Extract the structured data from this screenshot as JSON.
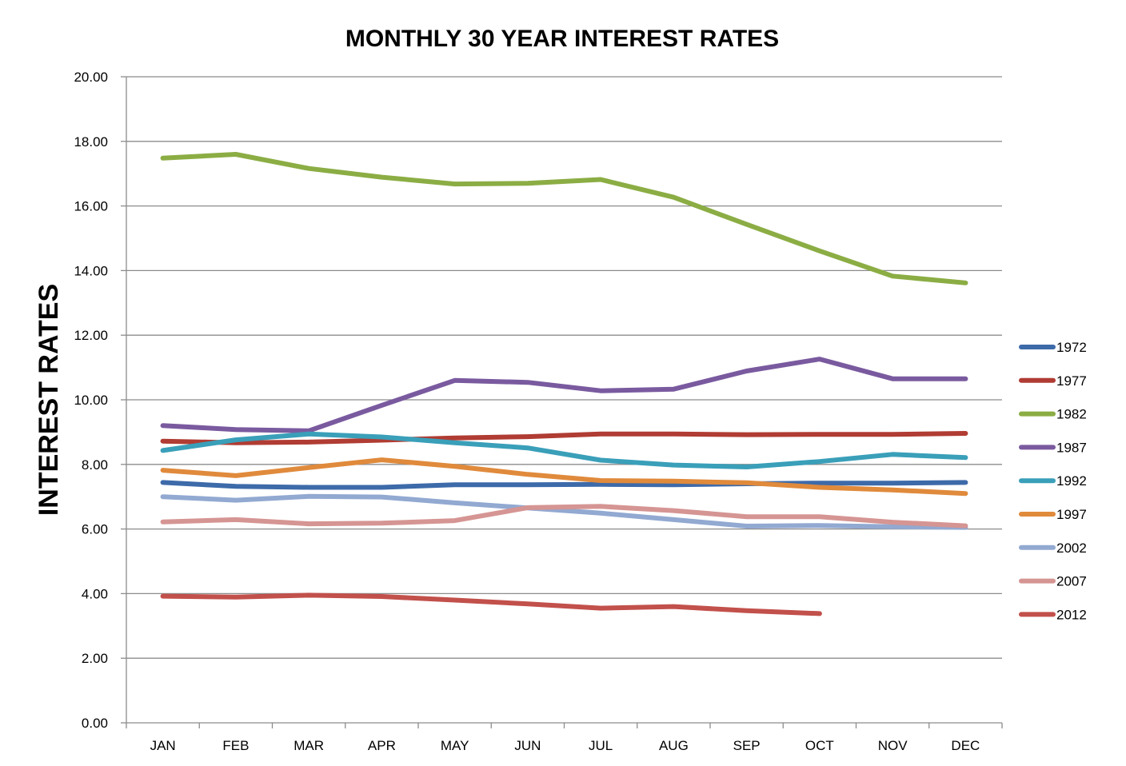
{
  "chart_data": {
    "type": "line",
    "title": "MONTHLY 30 YEAR INTEREST RATES",
    "xlabel": "",
    "ylabel": "INTEREST RATES",
    "categories": [
      "JAN",
      "FEB",
      "MAR",
      "APR",
      "MAY",
      "JUN",
      "JUL",
      "AUG",
      "SEP",
      "OCT",
      "NOV",
      "DEC"
    ],
    "ylim": [
      0,
      20
    ],
    "yticks": [
      "0.00",
      "2.00",
      "4.00",
      "6.00",
      "8.00",
      "10.00",
      "12.00",
      "14.00",
      "16.00",
      "18.00",
      "20.00"
    ],
    "grid": true,
    "legend_position": "right",
    "series": [
      {
        "name": "1972",
        "color": "#3d6aa9",
        "values": [
          7.44,
          7.32,
          7.29,
          7.29,
          7.37,
          7.37,
          7.38,
          7.37,
          7.4,
          7.42,
          7.42,
          7.44
        ]
      },
      {
        "name": "1977",
        "color": "#b03c33",
        "values": [
          8.72,
          8.67,
          8.69,
          8.75,
          8.82,
          8.86,
          8.94,
          8.94,
          8.92,
          8.93,
          8.93,
          8.96
        ]
      },
      {
        "name": "1982",
        "color": "#8bad44",
        "values": [
          17.48,
          17.6,
          17.16,
          16.89,
          16.68,
          16.7,
          16.82,
          16.27,
          15.43,
          14.61,
          13.83,
          13.62
        ]
      },
      {
        "name": "1987",
        "color": "#7a5a9f",
        "values": [
          9.2,
          9.08,
          9.04,
          9.83,
          10.6,
          10.54,
          10.28,
          10.33,
          10.89,
          11.26,
          10.65,
          10.65
        ]
      },
      {
        "name": "1992",
        "color": "#3a9fb9",
        "values": [
          8.43,
          8.76,
          8.94,
          8.85,
          8.67,
          8.51,
          8.13,
          7.98,
          7.92,
          8.09,
          8.31,
          8.21
        ]
      },
      {
        "name": "1997",
        "color": "#e08a3c",
        "values": [
          7.82,
          7.65,
          7.9,
          8.14,
          7.94,
          7.69,
          7.5,
          7.48,
          7.43,
          7.29,
          7.21,
          7.1
        ]
      },
      {
        "name": "2002",
        "color": "#92a9d1",
        "values": [
          7.0,
          6.89,
          7.01,
          6.99,
          6.81,
          6.65,
          6.49,
          6.29,
          6.09,
          6.11,
          6.07,
          6.05
        ]
      },
      {
        "name": "2007",
        "color": "#d59593",
        "values": [
          6.22,
          6.29,
          6.16,
          6.18,
          6.26,
          6.66,
          6.7,
          6.57,
          6.38,
          6.38,
          6.21,
          6.1
        ]
      },
      {
        "name": "2012",
        "color": "#c2504b",
        "values": [
          3.92,
          3.89,
          3.95,
          3.91,
          3.8,
          3.68,
          3.55,
          3.6,
          3.47,
          3.38,
          null,
          null
        ]
      }
    ]
  }
}
